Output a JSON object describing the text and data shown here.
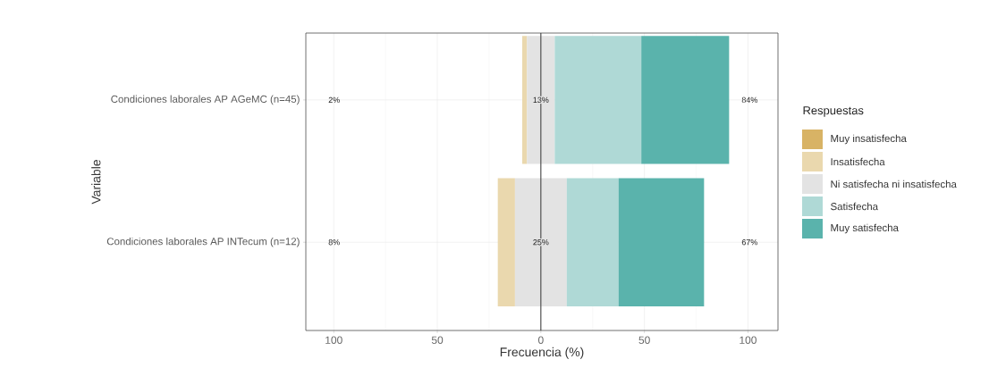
{
  "chart_data": {
    "type": "bar",
    "orientation": "horizontal",
    "xlabel": "Frecuencia (%)",
    "ylabel": "Variable",
    "legend_title": "Respuestas",
    "legend": "right",
    "categories": [
      "Condiciones laborales AP AGeMC (n=45)",
      "Condiciones laborales AP INTecum (n=12)"
    ],
    "series": [
      {
        "name": "Muy insatisfecha",
        "color": "#d8b365",
        "values": [
          0,
          0
        ]
      },
      {
        "name": "Insatisfecha",
        "color": "#ead8ae",
        "values": [
          2.3,
          8.3
        ],
        "base": [
          -9.0,
          -20.8
        ]
      },
      {
        "name": "Ni satisfecha ni insatisfecha",
        "color": "#e3e3e3",
        "values": [
          13.4,
          25
        ],
        "base": [
          -6.7,
          -12.5
        ]
      },
      {
        "name": "Satisfecha",
        "color": "#afd9d6",
        "values": [
          41.8,
          25
        ],
        "base": [
          6.7,
          12.5
        ]
      },
      {
        "name": "Muy satisfecha",
        "color": "#5ab3ac",
        "values": [
          42.4,
          41.3
        ],
        "base": [
          48.5,
          37.5
        ]
      }
    ],
    "xlim": [
      -113.5,
      114.5
    ],
    "xticks": [
      {
        "value": -100,
        "label": "100"
      },
      {
        "value": -50,
        "label": "50"
      },
      0,
      50,
      100
    ],
    "grid": true,
    "ref_lines": [
      {
        "axis": "x",
        "value": 0,
        "color": "#333333"
      }
    ],
    "annotations": [
      "2%",
      "13%",
      "84%",
      "8%",
      "25%",
      "67%"
    ]
  }
}
